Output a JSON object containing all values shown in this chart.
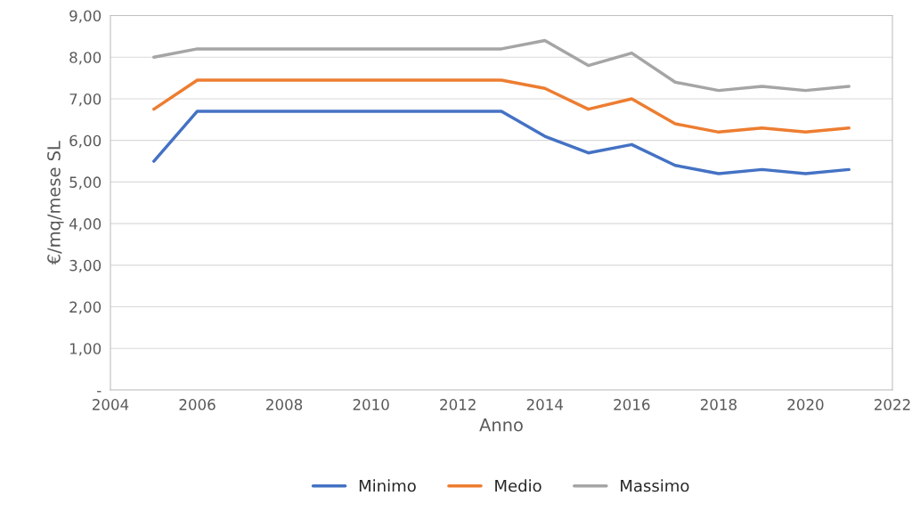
{
  "chart_data": {
    "type": "line",
    "xlabel": "Anno",
    "ylabel": "€/mq/mese SL",
    "x": [
      2005,
      2006,
      2007,
      2008,
      2009,
      2010,
      2011,
      2012,
      2013,
      2014,
      2015,
      2016,
      2017,
      2018,
      2019,
      2020,
      2021
    ],
    "series": [
      {
        "name": "Minimo",
        "color": "#4472c4",
        "values": [
          5.5,
          6.7,
          6.7,
          6.7,
          6.7,
          6.7,
          6.7,
          6.7,
          6.7,
          6.1,
          5.7,
          5.9,
          5.4,
          5.2,
          5.3,
          5.2,
          5.3
        ]
      },
      {
        "name": "Medio",
        "color": "#ed7d31",
        "values": [
          6.75,
          7.45,
          7.45,
          7.45,
          7.45,
          7.45,
          7.45,
          7.45,
          7.45,
          7.25,
          6.75,
          7.0,
          6.4,
          6.2,
          6.3,
          6.2,
          6.3
        ]
      },
      {
        "name": "Massimo",
        "color": "#a5a5a5",
        "values": [
          8.0,
          8.2,
          8.2,
          8.2,
          8.2,
          8.2,
          8.2,
          8.2,
          8.2,
          8.4,
          7.8,
          8.1,
          7.4,
          7.2,
          7.3,
          7.2,
          7.3
        ]
      }
    ],
    "xlim": [
      2004,
      2022
    ],
    "xticks": [
      2004,
      2006,
      2008,
      2010,
      2012,
      2014,
      2016,
      2018,
      2020,
      2022
    ],
    "ylim": [
      0,
      9
    ],
    "yticks": [
      {
        "value": 0,
        "label": "-"
      },
      {
        "value": 1,
        "label": "1,00"
      },
      {
        "value": 2,
        "label": "2,00"
      },
      {
        "value": 3,
        "label": "3,00"
      },
      {
        "value": 4,
        "label": "4,00"
      },
      {
        "value": 5,
        "label": "5,00"
      },
      {
        "value": 6,
        "label": "6,00"
      },
      {
        "value": 7,
        "label": "7,00"
      },
      {
        "value": 8,
        "label": "8,00"
      },
      {
        "value": 9,
        "label": "9,00"
      }
    ],
    "grid": "y",
    "legend": "bottom",
    "marker": "none",
    "line_style": "solid"
  }
}
